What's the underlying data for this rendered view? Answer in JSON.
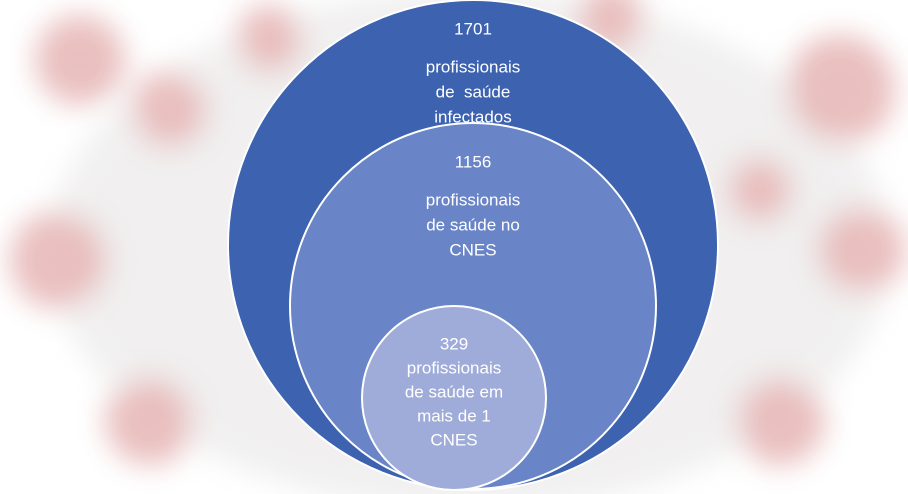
{
  "circles": [
    {
      "number": 1701,
      "label_lines": [
        "profissionais",
        "de  saúde",
        "infectados"
      ]
    },
    {
      "number": 1156,
      "label_lines": [
        "profissionais",
        "de saúde no",
        "CNES"
      ]
    },
    {
      "number": 329,
      "label_lines": [
        "profissionais",
        "de saúde em",
        "mais de 1",
        "CNES"
      ]
    }
  ]
}
